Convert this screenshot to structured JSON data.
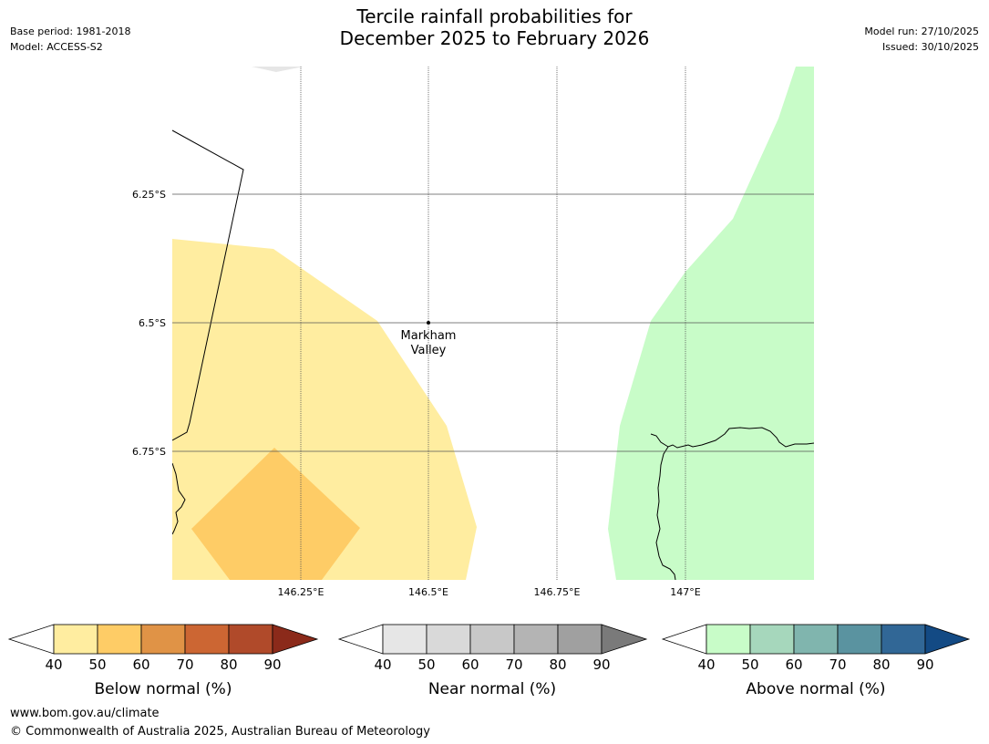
{
  "header": {
    "title_line1": "Tercile rainfall probabilities for",
    "title_line2": "December 2025 to February 2026",
    "base_period": "Base period: 1981-2018",
    "model": "Model: ACCESS-S2",
    "model_run": "Model run: 27/10/2025",
    "issued": "Issued: 30/10/2025"
  },
  "map": {
    "lat_labels": [
      "6.25°S",
      "6.5°S",
      "6.75°S"
    ],
    "lon_labels": [
      "146.25°E",
      "146.5°E",
      "146.75°E",
      "147°E"
    ],
    "place": {
      "name_line1": "Markham",
      "name_line2": "Valley",
      "lon": 146.5,
      "lat": -6.5
    },
    "colors": {
      "below_40": "#ffeda0",
      "below_50": "#fecc66",
      "above_40": "#c8fcc8"
    }
  },
  "colorbars": [
    {
      "label": "Below normal (%)",
      "ticks": [
        "40",
        "50",
        "60",
        "70",
        "80",
        "90"
      ],
      "colors": [
        "#ffeda0",
        "#fecc66",
        "#e09346",
        "#cc6633",
        "#b04a2a",
        "#8b2a1a"
      ]
    },
    {
      "label": "Near normal (%)",
      "ticks": [
        "40",
        "50",
        "60",
        "70",
        "80",
        "90"
      ],
      "colors": [
        "#e6e6e6",
        "#d9d9d9",
        "#c8c8c8",
        "#b4b4b4",
        "#a0a0a0",
        "#7a7a7a"
      ]
    },
    {
      "label": "Above normal (%)",
      "ticks": [
        "40",
        "50",
        "60",
        "70",
        "80",
        "90"
      ],
      "colors": [
        "#c8fcc8",
        "#a6d7bc",
        "#80b5ae",
        "#5a93a0",
        "#316796",
        "#134a84"
      ]
    }
  ],
  "footer": {
    "url": "www.bom.gov.au/climate",
    "copyright": "© Commonwealth of Australia 2025, Australian Bureau of Meteorology"
  }
}
